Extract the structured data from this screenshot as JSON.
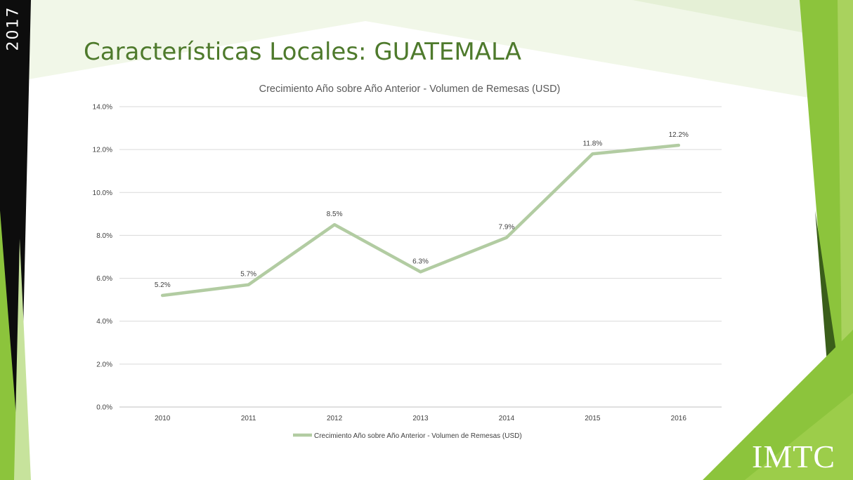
{
  "slide": {
    "year_tag": "2017",
    "title": "Características Locales: GUATEMALA",
    "logo": "IMTC"
  },
  "colors": {
    "title": "#4e7a2c",
    "line": "#b2cca2",
    "accent_green": "#8cc43c",
    "dark_green": "#3a5e1a",
    "grid": "#d9d9d9",
    "text": "#595959"
  },
  "chart_data": {
    "type": "line",
    "title": "Crecimiento Año sobre Año Anterior - Volumen de Remesas (USD)",
    "categories": [
      "2010",
      "2011",
      "2012",
      "2013",
      "2014",
      "2015",
      "2016"
    ],
    "series": [
      {
        "name": "Crecimiento Año sobre Año Anterior - Volumen de Remesas (USD)",
        "values": [
          5.2,
          5.7,
          8.5,
          6.3,
          7.9,
          11.8,
          12.2
        ],
        "labels": [
          "5.2%",
          "5.7%",
          "8.5%",
          "6.3%",
          "7.9%",
          "11.8%",
          "12.2%"
        ]
      }
    ],
    "y_ticks": [
      "0.0%",
      "2.0%",
      "4.0%",
      "6.0%",
      "8.0%",
      "10.0%",
      "12.0%",
      "14.0%"
    ],
    "ylim": [
      0,
      14
    ],
    "grid": true,
    "legend": "bottom"
  }
}
